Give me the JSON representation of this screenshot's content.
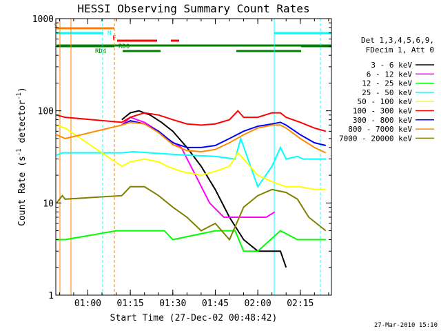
{
  "chart_data": {
    "type": "line",
    "title": "HESSI Observing Summary Count Rates",
    "xlabel": "Start Time (27-Dec-02 00:48:42)",
    "ylabel": "Count Rate (s",
    "ylabel_sup": "-1",
    "ylabel_tail": " detector",
    "ylabel_sup2": "-1",
    "ylabel_end": ")",
    "y_scale": "log",
    "ylim": [
      1,
      1000
    ],
    "xlim": [
      "00:48:42",
      "02:26:00"
    ],
    "x_ticks": [
      "01:00",
      "01:15",
      "01:30",
      "01:45",
      "02:00",
      "02:15"
    ],
    "y_ticks": [
      "1",
      "10",
      "100",
      "1000"
    ],
    "legend_header": [
      "Det 1,3,4,5,6,9,",
      "FDecim 1, Att 0"
    ],
    "legend_position": "right",
    "timestamp": "27-Mar-2010 15:10",
    "flags": [
      {
        "label": "S",
        "color": "#ff7f00"
      },
      {
        "label": "N",
        "color": "#00ffff"
      },
      {
        "label": "F",
        "color": "#ff0000"
      },
      {
        "label": "RD0",
        "color": "#008000"
      },
      {
        "label": "RD4",
        "color": "#008000"
      }
    ],
    "series": [
      {
        "name": "3 - 6 keV",
        "color": "#000000",
        "x": [
          "00:52",
          "00:55",
          "01:12",
          "01:15",
          "01:18",
          "01:22",
          "01:26",
          "01:30",
          "01:35",
          "01:40",
          "01:45",
          "01:50",
          "01:55",
          "02:00",
          "02:05",
          "02:08",
          "02:10"
        ],
        "y": [
          null,
          null,
          80,
          95,
          100,
          90,
          75,
          60,
          40,
          25,
          14,
          7,
          4,
          3,
          3,
          3,
          2
        ]
      },
      {
        "name": "6 - 12 keV",
        "color": "#ff00ff",
        "x": [
          "01:12",
          "01:15",
          "01:20",
          "01:25",
          "01:28",
          "01:33",
          "01:38",
          "01:43",
          "01:48",
          "01:53",
          "01:58",
          "02:03",
          "02:06"
        ],
        "y": [
          70,
          85,
          75,
          60,
          50,
          40,
          20,
          10,
          7,
          7,
          7,
          7,
          8
        ]
      },
      {
        "name": "12 - 25 keV",
        "color": "#00ff00",
        "x": [
          "00:49",
          "00:52",
          "01:10",
          "01:20",
          "01:27",
          "01:30",
          "01:45",
          "01:52",
          "01:55",
          "02:00",
          "02:08",
          "02:14",
          "02:18",
          "02:24"
        ],
        "y": [
          4,
          4,
          5,
          5,
          5,
          4,
          5,
          5,
          3,
          3,
          5,
          4,
          4,
          4
        ]
      },
      {
        "name": "25 - 50 keV",
        "color": "#00ffff",
        "x": [
          "00:49",
          "00:51",
          "01:12",
          "01:16",
          "01:22",
          "01:28",
          "01:35",
          "01:45",
          "01:52",
          "01:54",
          "02:00",
          "02:05",
          "02:08",
          "02:10",
          "02:14",
          "02:16",
          "02:24"
        ],
        "y": [
          33,
          35,
          35,
          36,
          35,
          34,
          33,
          32,
          30,
          50,
          15,
          25,
          40,
          30,
          32,
          30,
          30
        ]
      },
      {
        "name": "50 - 100 keV",
        "color": "#ffff00",
        "x": [
          "00:49",
          "00:52",
          "01:12",
          "01:15",
          "01:20",
          "01:25",
          "01:28",
          "01:33",
          "01:40",
          "01:45",
          "01:50",
          "01:53",
          "01:55",
          "02:00",
          "02:05",
          "02:10",
          "02:15",
          "02:20",
          "02:24"
        ],
        "y": [
          70,
          65,
          25,
          28,
          30,
          28,
          25,
          22,
          20,
          22,
          25,
          35,
          30,
          20,
          17,
          15,
          15,
          14,
          14
        ]
      },
      {
        "name": "100 - 300 keV",
        "color": "#ff0000",
        "x": [
          "00:49",
          "00:52",
          "01:12",
          "01:15",
          "01:20",
          "01:25",
          "01:30",
          "01:35",
          "01:40",
          "01:45",
          "01:50",
          "01:53",
          "01:55",
          "02:00",
          "02:05",
          "02:08",
          "02:10",
          "02:15",
          "02:20",
          "02:24"
        ],
        "y": [
          90,
          85,
          75,
          85,
          95,
          90,
          80,
          72,
          70,
          72,
          80,
          100,
          85,
          85,
          95,
          95,
          85,
          75,
          65,
          60
        ]
      },
      {
        "name": "300 - 800 keV",
        "color": "#0000ff",
        "x": [
          "01:12",
          "01:15",
          "01:20",
          "01:25",
          "01:30",
          "01:35",
          "01:40",
          "01:45",
          "01:50",
          "01:55",
          "02:00",
          "02:05",
          "02:08",
          "02:10",
          "02:15",
          "02:20",
          "02:24"
        ],
        "y": [
          70,
          78,
          72,
          60,
          45,
          40,
          40,
          42,
          50,
          60,
          68,
          72,
          75,
          70,
          55,
          45,
          42
        ]
      },
      {
        "name": "800 - 7000 keV",
        "color": "#ff8c00",
        "x": [
          "00:49",
          "00:52",
          "01:12",
          "01:15",
          "01:20",
          "01:25",
          "01:30",
          "01:35",
          "01:40",
          "01:45",
          "01:50",
          "01:55",
          "02:00",
          "02:05",
          "02:08",
          "02:10",
          "02:15",
          "02:20",
          "02:24"
        ],
        "y": [
          55,
          50,
          70,
          75,
          72,
          58,
          43,
          37,
          36,
          38,
          45,
          55,
          65,
          70,
          70,
          65,
          50,
          40,
          35
        ]
      },
      {
        "name": "7000 - 20000 keV",
        "color": "#808000",
        "x": [
          "00:49",
          "00:51",
          "00:52",
          "01:12",
          "01:15",
          "01:20",
          "01:25",
          "01:30",
          "01:35",
          "01:40",
          "01:45",
          "01:50",
          "01:55",
          "02:00",
          "02:05",
          "02:10",
          "02:14",
          "02:18",
          "02:24"
        ],
        "y": [
          10,
          12,
          11,
          12,
          15,
          15,
          12,
          9,
          7,
          5,
          6,
          4,
          9,
          12,
          14,
          13,
          11,
          7,
          5
        ]
      }
    ]
  }
}
